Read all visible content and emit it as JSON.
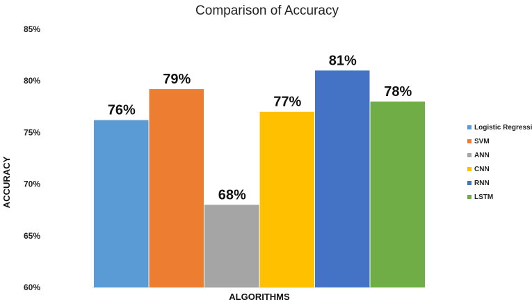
{
  "chart_data": {
    "type": "bar",
    "title": "Comparison of Accuracy",
    "xlabel": "ALGORITHMS",
    "ylabel": "ACCURACY",
    "ylim": [
      60,
      85
    ],
    "yticks": [
      "85%",
      "80%",
      "75%",
      "70%",
      "65%",
      "60%"
    ],
    "ytick_values": [
      85,
      80,
      75,
      70,
      65,
      60
    ],
    "grid": false,
    "legend_position": "right",
    "series": [
      {
        "name": "Logistic Regression",
        "value": 76.2,
        "label": "76%",
        "color": "#5B9BD5"
      },
      {
        "name": "SVM",
        "value": 79.2,
        "label": "79%",
        "color": "#ED7D31"
      },
      {
        "name": "ANN",
        "value": 68.0,
        "label": "68%",
        "color": "#A5A5A5"
      },
      {
        "name": "CNN",
        "value": 77.0,
        "label": "77%",
        "color": "#FFC000"
      },
      {
        "name": "RNN",
        "value": 81.0,
        "label": "81%",
        "color": "#4472C4"
      },
      {
        "name": "LSTM",
        "value": 78.0,
        "label": "78%",
        "color": "#70AD47"
      }
    ]
  }
}
